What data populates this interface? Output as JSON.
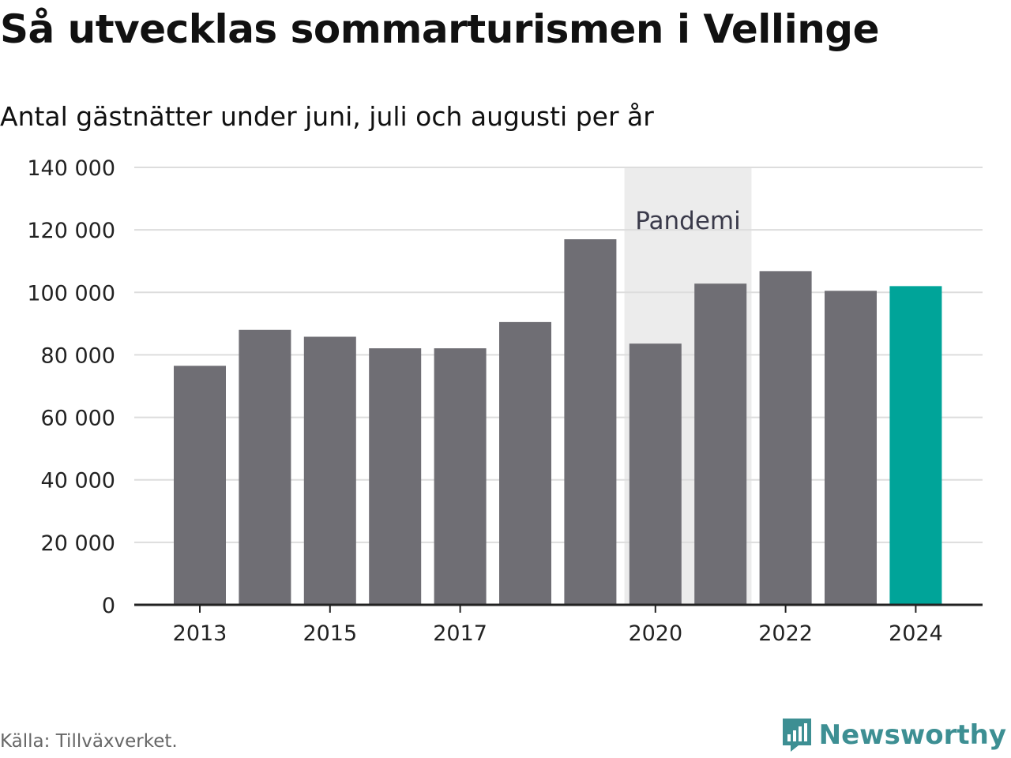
{
  "title": "Så utvecklas sommarturismen i Vellinge",
  "subtitle": "Antal gästnätter under juni, juli och augusti per år",
  "source": "Källa: Tillväxverket.",
  "brand": "Newsworthy",
  "colors": {
    "bar": "#6f6e74",
    "highlight": "#00a499",
    "band": "#ececec",
    "grid": "#dddddd",
    "axis": "#222222",
    "brand": "#3d8f93"
  },
  "chart_data": {
    "type": "bar",
    "categories": [
      "2013",
      "2014",
      "2015",
      "2016",
      "2017",
      "2018",
      "2019",
      "2020",
      "2021",
      "2022",
      "2023",
      "2024"
    ],
    "values": [
      76500,
      88000,
      85800,
      82100,
      82100,
      90500,
      117000,
      83600,
      102800,
      106800,
      100500,
      102000
    ],
    "highlight": "2024",
    "ylim": [
      0,
      140000
    ],
    "yticks": [
      0,
      20000,
      40000,
      60000,
      80000,
      100000,
      120000,
      140000
    ],
    "ytick_labels": [
      "0",
      "20 000",
      "40 000",
      "60 000",
      "80 000",
      "100 000",
      "120 000",
      "140 000"
    ],
    "xtick_labels": [
      "2013",
      "2015",
      "2017",
      "2020",
      "2022",
      "2024"
    ],
    "annotation": {
      "label": "Pandemi",
      "from": "2020",
      "to": "2021"
    },
    "grid": true
  }
}
